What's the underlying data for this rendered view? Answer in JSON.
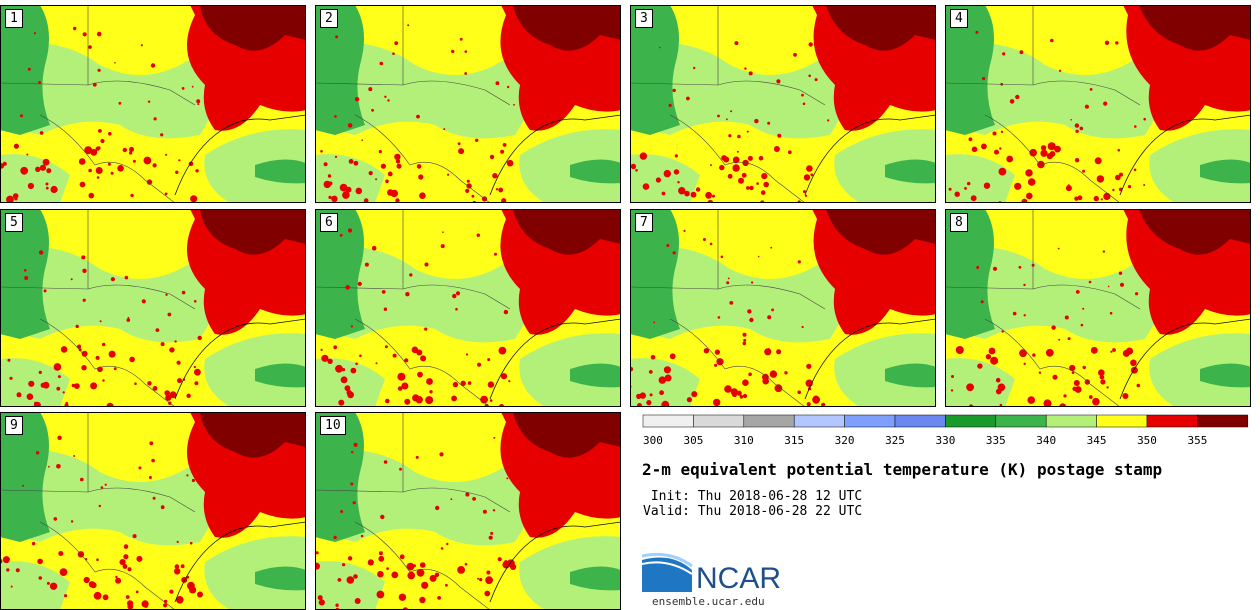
{
  "panels": [
    {
      "id": "1",
      "label": "1"
    },
    {
      "id": "2",
      "label": "2"
    },
    {
      "id": "3",
      "label": "3"
    },
    {
      "id": "4",
      "label": "4"
    },
    {
      "id": "5",
      "label": "5"
    },
    {
      "id": "6",
      "label": "6"
    },
    {
      "id": "7",
      "label": "7"
    },
    {
      "id": "8",
      "label": "8"
    },
    {
      "id": "9",
      "label": "9"
    },
    {
      "id": "10",
      "label": "10"
    }
  ],
  "colorbar": {
    "ticks": [
      "300",
      "305",
      "310",
      "315",
      "320",
      "325",
      "330",
      "335",
      "340",
      "345",
      "350",
      "355"
    ],
    "colors": [
      "#f0f0f0",
      "#d9d9d9",
      "#a6a6a6",
      "#b3c6ff",
      "#7f9fff",
      "#6b88f0",
      "#1a9a2a",
      "#3cb44b",
      "#b3f07a",
      "#ffff1a",
      "#e60000",
      "#800000"
    ]
  },
  "title": "2-m equivalent potential temperature (K) postage stamp",
  "init": " Init: Thu 2018-06-28 12 UTC",
  "valid": "Valid: Thu 2018-06-28 22 UTC",
  "logo": {
    "text": "NCAR",
    "color": "#1f4e8c"
  },
  "site": "ensemble.ucar.edu",
  "map_colors": {
    "land_dark_green": "#3cb44b",
    "light_green": "#b3f07a",
    "yellow": "#ffff1a",
    "red": "#e60000",
    "dark_red": "#800000"
  }
}
